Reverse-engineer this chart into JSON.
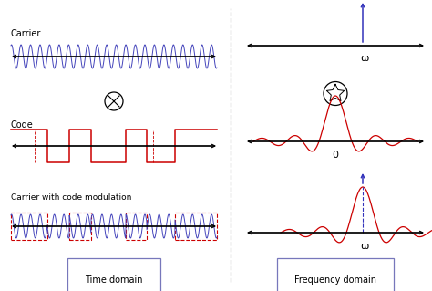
{
  "fig_width": 4.74,
  "fig_height": 3.19,
  "dpi": 100,
  "bg_color": "#ffffff",
  "carrier_color": "#4444bb",
  "code_color": "#cc0000",
  "modulated_color": "#4444bb",
  "envelope_color": "#cc0000",
  "sinc_color": "#cc0000",
  "impulse_color": "#3333bb",
  "divider_color": "#aaaaaa",
  "label_carrier": "Carrier",
  "label_code": "Code",
  "label_modulated": "Carrier with code modulation",
  "label_time": "Time domain",
  "label_freq": "Frequency domain",
  "label_omega": "ω",
  "label_zero": "0"
}
